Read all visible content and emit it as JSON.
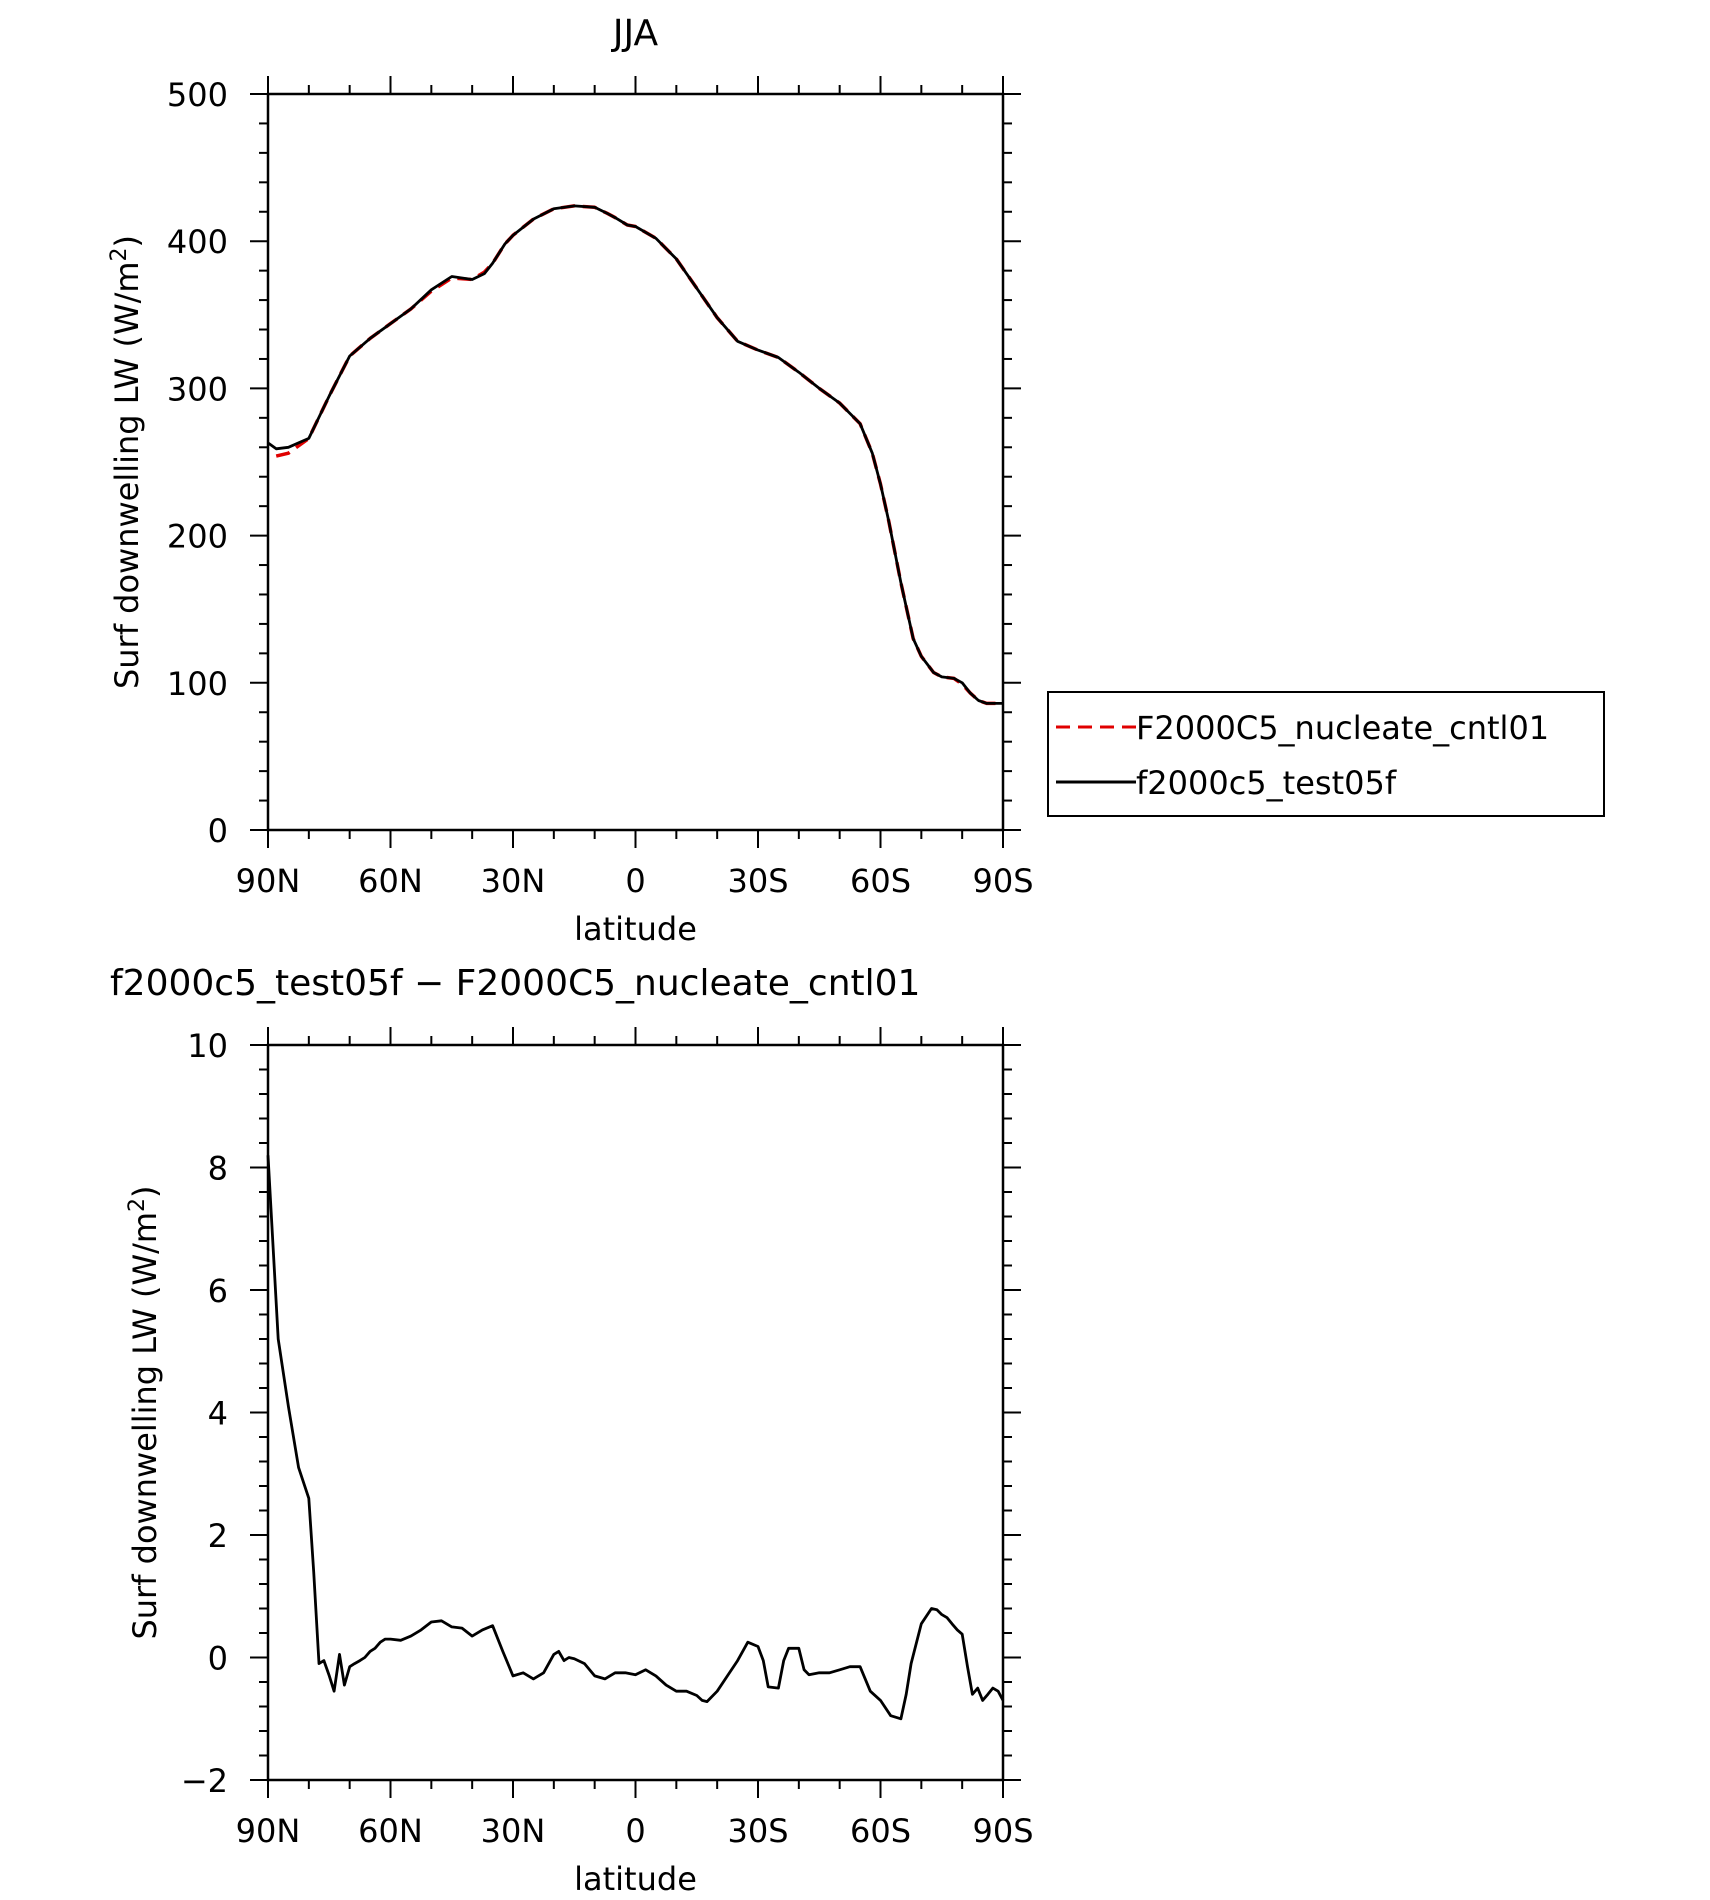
{
  "chart_data": [
    {
      "type": "line",
      "title": "JJA",
      "xlabel": "latitude",
      "ylabel": "Surf downwelling LW (W/m²)",
      "ylabel_main": "Surf downwelling LW (W/m",
      "ylabel_sup": "2",
      "ylabel_close": ")",
      "xlim": [
        90,
        -90
      ],
      "ylim": [
        0,
        500
      ],
      "xticks": [
        {
          "value": 90,
          "label": "90N"
        },
        {
          "value": 60,
          "label": "60N"
        },
        {
          "value": 30,
          "label": "30N"
        },
        {
          "value": 0,
          "label": "0"
        },
        {
          "value": -30,
          "label": "30S"
        },
        {
          "value": -60,
          "label": "60S"
        },
        {
          "value": -90,
          "label": "90S"
        }
      ],
      "yticks": [
        {
          "value": 0,
          "label": "0"
        },
        {
          "value": 100,
          "label": "100"
        },
        {
          "value": 200,
          "label": "200"
        },
        {
          "value": 300,
          "label": "300"
        },
        {
          "value": 400,
          "label": "400"
        },
        {
          "value": 500,
          "label": "500"
        }
      ],
      "legend": {
        "placement": "right",
        "entries": [
          "F2000C5_nucleate_cntl01",
          "f2000c5_test05f"
        ]
      },
      "series": [
        {
          "name": "F2000C5_nucleate_cntl01",
          "color": "#e00000",
          "dash": "dashed",
          "x": [
            88,
            85,
            80,
            75,
            70,
            65,
            60,
            55,
            50,
            45,
            40,
            37,
            35,
            32,
            30,
            25,
            20,
            15,
            10,
            7,
            5,
            2,
            0,
            -5,
            -10,
            -15,
            -20,
            -25,
            -30,
            -35,
            -40,
            -45,
            -50,
            -55,
            -58,
            -60,
            -62,
            -65,
            -68,
            -70,
            -73,
            -75,
            -78,
            -80,
            -82,
            -84,
            -86,
            -88,
            -90
          ],
          "y": [
            254,
            256,
            266,
            295,
            322,
            334,
            344,
            354,
            366,
            375,
            374,
            379,
            385,
            398,
            404,
            415,
            422,
            424,
            423,
            419,
            416,
            411,
            410,
            402,
            388,
            368,
            348,
            332,
            326,
            321,
            311,
            300,
            290,
            276,
            256,
            235,
            210,
            168,
            130,
            118,
            107,
            104,
            103,
            99,
            93,
            88,
            86,
            86,
            86
          ]
        },
        {
          "name": "f2000c5_test05f",
          "color": "#000000",
          "dash": "solid",
          "x": [
            90,
            88,
            85,
            80,
            75,
            70,
            65,
            60,
            55,
            50,
            45,
            40,
            37,
            35,
            32,
            30,
            25,
            20,
            15,
            10,
            7,
            5,
            2,
            0,
            -5,
            -10,
            -15,
            -20,
            -25,
            -30,
            -35,
            -40,
            -45,
            -50,
            -55,
            -58,
            -60,
            -62,
            -65,
            -68,
            -70,
            -73,
            -75,
            -78,
            -80,
            -82,
            -84,
            -86,
            -88,
            -90
          ],
          "y": [
            263,
            259,
            260,
            266,
            295,
            322,
            334,
            344,
            354,
            367,
            376,
            374,
            378,
            385,
            398,
            404,
            415,
            422,
            424,
            423,
            419,
            416,
            411,
            410,
            402,
            388,
            368,
            348,
            332,
            326,
            321,
            311,
            300,
            290,
            276,
            256,
            235,
            210,
            168,
            130,
            118,
            107,
            104,
            103,
            100,
            93,
            88,
            86,
            86,
            86
          ]
        }
      ]
    },
    {
      "type": "line",
      "title": "f2000c5_test05f − F2000C5_nucleate_cntl01",
      "xlabel": "latitude",
      "ylabel": "Surf downwelling LW (W/m²)",
      "ylabel_main": "Surf downwelling LW (W/m",
      "ylabel_sup": "2",
      "ylabel_close": ")",
      "xlim": [
        90,
        -90
      ],
      "ylim": [
        -2,
        10
      ],
      "xticks": [
        {
          "value": 90,
          "label": "90N"
        },
        {
          "value": 60,
          "label": "60N"
        },
        {
          "value": 30,
          "label": "30N"
        },
        {
          "value": 0,
          "label": "0"
        },
        {
          "value": -30,
          "label": "30S"
        },
        {
          "value": -60,
          "label": "60S"
        },
        {
          "value": -90,
          "label": "90S"
        }
      ],
      "yticks": [
        {
          "value": -2,
          "label": "−2"
        },
        {
          "value": 0,
          "label": "0"
        },
        {
          "value": 2,
          "label": "2"
        },
        {
          "value": 4,
          "label": "4"
        },
        {
          "value": 6,
          "label": "6"
        },
        {
          "value": 8,
          "label": "8"
        },
        {
          "value": 10,
          "label": "10"
        }
      ],
      "series": [
        {
          "color": "#000000",
          "dash": "solid",
          "x": [
            90,
            87.5,
            85,
            82.5,
            80,
            78.8,
            77.5,
            76.3,
            75,
            73.8,
            72.5,
            71.3,
            70,
            68.8,
            67.5,
            66.3,
            65,
            63.8,
            62.5,
            61.3,
            60,
            57.5,
            55,
            52.5,
            50,
            47.5,
            45,
            42.5,
            40,
            37.5,
            35,
            32.5,
            30,
            27.5,
            25,
            22.5,
            20,
            18.8,
            17.5,
            16.3,
            15,
            12.5,
            10,
            7.5,
            5,
            2.5,
            0,
            -2.5,
            -5,
            -7.5,
            -10,
            -12.5,
            -15,
            -16.3,
            -17.5,
            -20,
            -22.5,
            -25,
            -27.5,
            -30,
            -31.3,
            -32.5,
            -35,
            -36.3,
            -37.5,
            -40,
            -41.3,
            -42.5,
            -45,
            -47.5,
            -50,
            -52.5,
            -55,
            -57.5,
            -60,
            -62.5,
            -65,
            -66.3,
            -67.5,
            -70,
            -72.5,
            -73.8,
            -75,
            -76.3,
            -77.5,
            -78.8,
            -80,
            -81.3,
            -82.5,
            -83.8,
            -85,
            -86.3,
            -87.5,
            -88.8,
            -90
          ],
          "y": [
            8.2,
            5.2,
            4.1,
            3.1,
            2.6,
            1.4,
            -0.1,
            -0.05,
            -0.3,
            -0.55,
            0.05,
            -0.45,
            -0.15,
            -0.1,
            -0.05,
            0,
            0.1,
            0.15,
            0.25,
            0.3,
            0.3,
            0.28,
            0.35,
            0.45,
            0.58,
            0.6,
            0.5,
            0.48,
            0.35,
            0.45,
            0.52,
            0.1,
            -0.3,
            -0.25,
            -0.35,
            -0.25,
            0.05,
            0.1,
            -0.05,
            0,
            -0.02,
            -0.1,
            -0.3,
            -0.35,
            -0.25,
            -0.25,
            -0.28,
            -0.2,
            -0.3,
            -0.45,
            -0.55,
            -0.55,
            -0.62,
            -0.7,
            -0.72,
            -0.55,
            -0.3,
            -0.05,
            0.25,
            0.18,
            -0.05,
            -0.48,
            -0.5,
            -0.05,
            0.15,
            0.15,
            -0.2,
            -0.28,
            -0.25,
            -0.25,
            -0.2,
            -0.15,
            -0.15,
            -0.55,
            -0.7,
            -0.95,
            -1.0,
            -0.6,
            -0.1,
            0.55,
            0.8,
            0.78,
            0.7,
            0.65,
            0.55,
            0.45,
            0.38,
            -0.15,
            -0.6,
            -0.5,
            -0.7,
            -0.6,
            -0.5,
            -0.55,
            -0.7
          ]
        }
      ]
    }
  ]
}
